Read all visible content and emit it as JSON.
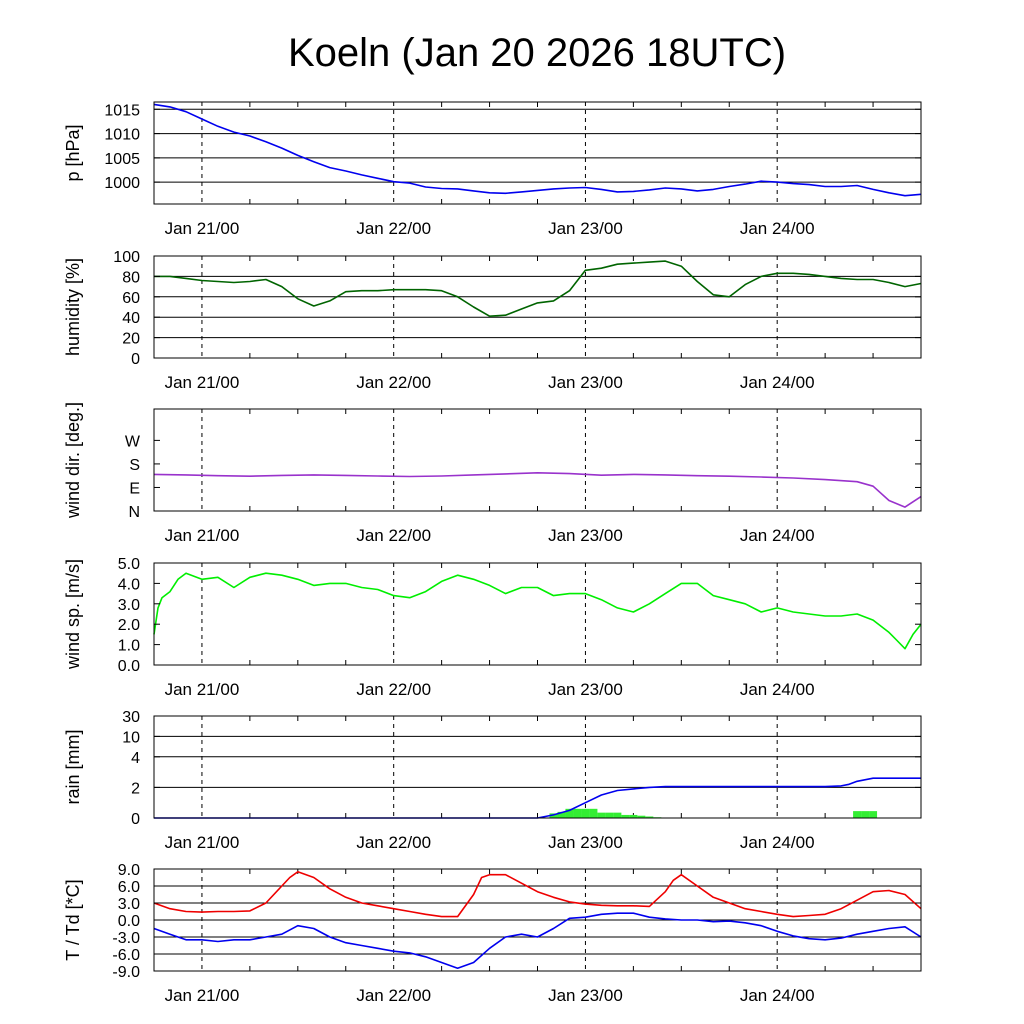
{
  "title": "Koeln (Jan 20 2026 18UTC)",
  "chart_data": {
    "type": "line",
    "x_unit": "hours since Jan 20 18UTC",
    "xlim": [
      0,
      96
    ],
    "x_ticks": [
      {
        "hour": 6,
        "label": "Jan 21/00"
      },
      {
        "hour": 30,
        "label": "Jan 22/00"
      },
      {
        "hour": 54,
        "label": "Jan 23/00"
      },
      {
        "hour": 78,
        "label": "Jan 24/00"
      }
    ],
    "panels": [
      {
        "id": "pressure",
        "type": "line",
        "ylabel": "p [hPa]",
        "ylim": [
          995.5,
          1016.5
        ],
        "y_ticks": [
          {
            "v": 1015,
            "label": "1015"
          },
          {
            "v": 1010,
            "label": "1010"
          },
          {
            "v": 1005,
            "label": "1005"
          },
          {
            "v": 1000,
            "label": "1000"
          }
        ],
        "grid": [
          1000,
          1005,
          1010,
          1015
        ],
        "series": [
          {
            "name": "pressure",
            "color": "#0000ee",
            "x": [
              0,
              2,
              4,
              6,
              8,
              10,
              12,
              14,
              16,
              18,
              20,
              22,
              24,
              26,
              28,
              30,
              32,
              34,
              36,
              38,
              40,
              42,
              44,
              46,
              48,
              50,
              52,
              54,
              56,
              58,
              60,
              62,
              64,
              66,
              68,
              70,
              72,
              74,
              76,
              78,
              80,
              82,
              84,
              86,
              88,
              90,
              92,
              94,
              96
            ],
            "y": [
              1016,
              1015.5,
              1014.5,
              1013,
              1011.5,
              1010.3,
              1009.5,
              1008.3,
              1007,
              1005.5,
              1004.2,
              1003,
              1002.3,
              1001.5,
              1000.8,
              1000.1,
              999.8,
              999,
              998.7,
              998.6,
              998.2,
              997.8,
              997.7,
              998,
              998.3,
              998.6,
              998.8,
              998.9,
              998.5,
              998,
              998.1,
              998.4,
              998.8,
              998.6,
              998.2,
              998.5,
              999.1,
              999.6,
              1000.2,
              1000,
              999.7,
              999.5,
              999.1,
              999.1,
              999.3,
              998.5,
              997.8,
              997.2,
              997.5
            ]
          }
        ]
      },
      {
        "id": "humidity",
        "type": "line",
        "ylabel": "humidity [%]",
        "ylim": [
          0,
          100
        ],
        "y_ticks": [
          {
            "v": 100,
            "label": "100"
          },
          {
            "v": 80,
            "label": "80"
          },
          {
            "v": 60,
            "label": "60"
          },
          {
            "v": 40,
            "label": "40"
          },
          {
            "v": 20,
            "label": "20"
          },
          {
            "v": 0,
            "label": "0"
          }
        ],
        "grid": [
          20,
          40,
          60,
          80
        ],
        "series": [
          {
            "name": "humidity",
            "color": "#006400",
            "x": [
              0,
              2,
              4,
              6,
              8,
              10,
              12,
              14,
              16,
              18,
              20,
              22,
              24,
              26,
              28,
              30,
              32,
              34,
              36,
              38,
              40,
              42,
              44,
              46,
              48,
              50,
              52,
              54,
              56,
              58,
              60,
              62,
              64,
              66,
              68,
              70,
              72,
              74,
              76,
              78,
              80,
              82,
              84,
              86,
              88,
              90,
              92,
              94,
              96
            ],
            "y": [
              80,
              80,
              78,
              76,
              75,
              74,
              75,
              77,
              70,
              58,
              51,
              56,
              65,
              66,
              66,
              67,
              67,
              67,
              66,
              60,
              50,
              41,
              42,
              48,
              54,
              56,
              66,
              86,
              88,
              92,
              93,
              94,
              95,
              90,
              75,
              62,
              60,
              72,
              80,
              83,
              83,
              82,
              80,
              78,
              77,
              77,
              74,
              70,
              73
            ]
          }
        ]
      },
      {
        "id": "wind_dir",
        "type": "line",
        "ylabel": "wind dir. [deg.]",
        "ylim": [
          0,
          390
        ],
        "y_ticks": [
          {
            "v": 270,
            "label": "W"
          },
          {
            "v": 180,
            "label": "S"
          },
          {
            "v": 90,
            "label": "E"
          },
          {
            "v": 0,
            "label": "N"
          }
        ],
        "grid": [],
        "series": [
          {
            "name": "wind direction",
            "color": "#9932cc",
            "x": [
              0,
              4,
              8,
              12,
              16,
              20,
              24,
              28,
              32,
              36,
              40,
              44,
              48,
              52,
              56,
              60,
              64,
              68,
              72,
              76,
              80,
              84,
              88,
              90,
              92,
              94,
              96
            ],
            "y": [
              140,
              138,
              135,
              133,
              136,
              138,
              136,
              134,
              132,
              134,
              138,
              142,
              146,
              143,
              137,
              140,
              138,
              135,
              133,
              130,
              126,
              120,
              112,
              95,
              40,
              15,
              55
            ]
          }
        ]
      },
      {
        "id": "wind_speed",
        "type": "line",
        "ylabel": "wind sp. [m/s]",
        "ylim": [
          0,
          5
        ],
        "y_ticks": [
          {
            "v": 5,
            "label": "5.0"
          },
          {
            "v": 4,
            "label": "4.0"
          },
          {
            "v": 3,
            "label": "3.0"
          },
          {
            "v": 2,
            "label": "2.0"
          },
          {
            "v": 1,
            "label": "1.0"
          },
          {
            "v": 0,
            "label": "0.0"
          }
        ],
        "grid": [],
        "series": [
          {
            "name": "wind speed",
            "color": "#00ee00",
            "x": [
              0,
              0.5,
              1,
              2,
              3,
              4,
              6,
              8,
              10,
              12,
              14,
              16,
              18,
              20,
              22,
              24,
              26,
              28,
              30,
              32,
              34,
              36,
              38,
              40,
              42,
              44,
              46,
              48,
              50,
              52,
              54,
              56,
              58,
              60,
              62,
              64,
              66,
              68,
              70,
              72,
              74,
              76,
              78,
              80,
              82,
              84,
              86,
              88,
              90,
              92,
              93,
              94,
              95,
              96
            ],
            "y": [
              1.5,
              2.8,
              3.3,
              3.6,
              4.2,
              4.5,
              4.2,
              4.3,
              3.8,
              4.3,
              4.5,
              4.4,
              4.2,
              3.9,
              4.0,
              4.0,
              3.8,
              3.7,
              3.4,
              3.3,
              3.6,
              4.1,
              4.4,
              4.2,
              3.9,
              3.5,
              3.8,
              3.8,
              3.4,
              3.5,
              3.5,
              3.2,
              2.8,
              2.6,
              3.0,
              3.5,
              4.0,
              4.0,
              3.4,
              3.2,
              3.0,
              2.6,
              2.8,
              2.6,
              2.5,
              2.4,
              2.4,
              2.5,
              2.2,
              1.6,
              1.2,
              0.8,
              1.5,
              2.0
            ]
          }
        ]
      },
      {
        "id": "rain",
        "type": "line+bar",
        "ylabel": "rain [mm]",
        "y_scale": "nonlinear",
        "y_ticks": [
          {
            "v": 30,
            "label": "30"
          },
          {
            "v": 10,
            "label": "10"
          },
          {
            "v": 4,
            "label": "4"
          },
          {
            "v": 2,
            "label": "2"
          },
          {
            "v": 0,
            "label": "0"
          }
        ],
        "grid": [
          2,
          4,
          10
        ],
        "series": [
          {
            "name": "accumulated rain",
            "color": "#0000ee",
            "x": [
              0,
              48,
              50,
              52,
              54,
              56,
              58,
              60,
              62,
              64,
              70,
              78,
              84,
              86,
              87,
              88,
              90,
              92,
              96
            ],
            "y": [
              0,
              0,
              0.2,
              0.5,
              1.0,
              1.5,
              1.8,
              1.9,
              2.0,
              2.05,
              2.05,
              2.05,
              2.05,
              2.1,
              2.2,
              2.4,
              2.6,
              2.6,
              2.6
            ]
          }
        ],
        "bars": {
          "name": "rain per hour",
          "color": "#33ee33",
          "x": [
            50,
            51,
            52,
            53,
            54,
            55,
            56,
            57,
            58,
            59,
            60,
            61,
            62,
            63,
            88,
            89,
            90
          ],
          "y": [
            0.3,
            0.4,
            0.6,
            0.6,
            0.6,
            0.6,
            0.35,
            0.35,
            0.35,
            0.2,
            0.2,
            0.15,
            0.1,
            0.05,
            0.45,
            0.45,
            0.45
          ]
        }
      },
      {
        "id": "temperature",
        "type": "line",
        "ylabel": "T / Td [*C]",
        "ylim": [
          -9,
          9
        ],
        "y_ticks": [
          {
            "v": 9,
            "label": "9.0"
          },
          {
            "v": 6,
            "label": "6.0"
          },
          {
            "v": 3,
            "label": "3.0"
          },
          {
            "v": 0,
            "label": "0.0"
          },
          {
            "v": -3,
            "label": "-3.0"
          },
          {
            "v": -6,
            "label": "-6.0"
          },
          {
            "v": -9,
            "label": "-9.0"
          }
        ],
        "grid": [
          -6,
          -3,
          0,
          3,
          6
        ],
        "series": [
          {
            "name": "T",
            "color": "#ee0000",
            "x": [
              0,
              2,
              4,
              6,
              8,
              10,
              12,
              14,
              16,
              17,
              18,
              20,
              22,
              24,
              26,
              28,
              30,
              32,
              34,
              36,
              38,
              40,
              41,
              42,
              44,
              46,
              48,
              50,
              52,
              54,
              56,
              58,
              60,
              62,
              64,
              65,
              66,
              68,
              70,
              72,
              74,
              76,
              78,
              80,
              82,
              84,
              86,
              88,
              90,
              92,
              94,
              96
            ],
            "y": [
              3.0,
              2.0,
              1.5,
              1.4,
              1.5,
              1.5,
              1.6,
              3.0,
              6.0,
              7.5,
              8.5,
              7.5,
              5.5,
              4.0,
              3.0,
              2.5,
              2.0,
              1.5,
              1.0,
              0.6,
              0.6,
              4.5,
              7.5,
              8.0,
              8.0,
              6.5,
              5.0,
              4.0,
              3.2,
              2.8,
              2.6,
              2.5,
              2.5,
              2.4,
              5.0,
              7.0,
              8.0,
              6.0,
              4.0,
              3.0,
              2.0,
              1.5,
              1.0,
              0.6,
              0.8,
              1.0,
              2.0,
              3.5,
              5.0,
              5.2,
              4.5,
              2.0
            ]
          },
          {
            "name": "Td",
            "color": "#0000ee",
            "x": [
              0,
              2,
              4,
              6,
              8,
              10,
              12,
              14,
              16,
              18,
              20,
              22,
              24,
              26,
              28,
              30,
              32,
              34,
              36,
              38,
              40,
              42,
              44,
              46,
              48,
              50,
              52,
              54,
              56,
              58,
              60,
              62,
              64,
              66,
              68,
              70,
              72,
              74,
              76,
              78,
              80,
              82,
              84,
              86,
              88,
              90,
              92,
              94,
              96
            ],
            "y": [
              -1.5,
              -2.5,
              -3.5,
              -3.5,
              -3.8,
              -3.5,
              -3.5,
              -3.0,
              -2.5,
              -1.0,
              -1.5,
              -3.0,
              -4.0,
              -4.5,
              -5.0,
              -5.5,
              -5.8,
              -6.5,
              -7.5,
              -8.5,
              -7.5,
              -5.0,
              -3.0,
              -2.5,
              -3.0,
              -1.5,
              0.3,
              0.5,
              1.0,
              1.2,
              1.2,
              0.5,
              0.2,
              0.0,
              0.0,
              -0.3,
              -0.2,
              -0.5,
              -1.0,
              -2.0,
              -2.8,
              -3.3,
              -3.5,
              -3.2,
              -2.5,
              -2.0,
              -1.5,
              -1.2,
              -3.0
            ]
          }
        ]
      }
    ]
  }
}
